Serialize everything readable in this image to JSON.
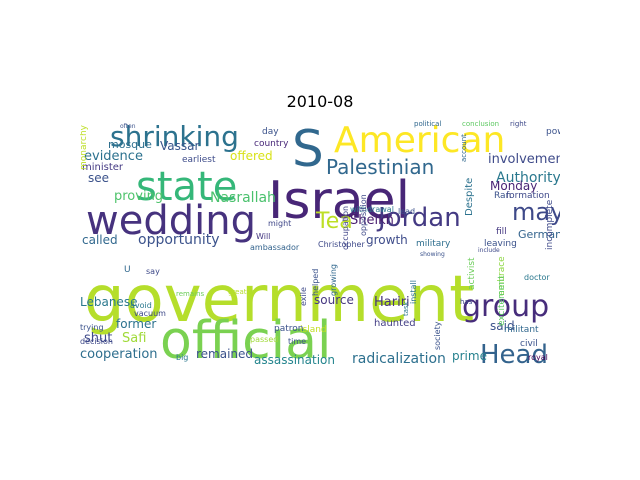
{
  "title": "2010-08",
  "chart_data": {
    "type": "wordcloud",
    "title": "2010-08",
    "words": [
      {
        "text": "government",
        "color": "#b5de2b"
      },
      {
        "text": "official",
        "color": "#7ad151"
      },
      {
        "text": "Israel",
        "color": "#482677"
      },
      {
        "text": "S",
        "color": "#31688e"
      },
      {
        "text": "American",
        "color": "#fde725"
      },
      {
        "text": "wedding",
        "color": "#46327e"
      },
      {
        "text": "state",
        "color": "#35b779"
      },
      {
        "text": "group",
        "color": "#472d7b"
      },
      {
        "text": "Jordan",
        "color": "#443a83"
      },
      {
        "text": "shrinking",
        "color": "#2c728e"
      },
      {
        "text": "Head",
        "color": "#33638d"
      },
      {
        "text": "Palestinian",
        "color": "#31688e"
      },
      {
        "text": "may",
        "color": "#3e4989"
      },
      {
        "text": "Tea",
        "color": "#bddf26"
      },
      {
        "text": "Authority",
        "color": "#2a788e"
      },
      {
        "text": "opportunity",
        "color": "#3b528b"
      },
      {
        "text": "Nasrallah",
        "color": "#4ac16d"
      },
      {
        "text": "involvement",
        "color": "#3e4a89"
      },
      {
        "text": "Monday",
        "color": "#482475"
      },
      {
        "text": "radicalization",
        "color": "#2d708e"
      },
      {
        "text": "assassination",
        "color": "#25858e"
      },
      {
        "text": "cooperation",
        "color": "#2e6e8e"
      },
      {
        "text": "remained",
        "color": "#3b528b"
      },
      {
        "text": "offered",
        "color": "#d8e219"
      },
      {
        "text": "evidence",
        "color": "#2c718e"
      },
      {
        "text": "proving",
        "color": "#4ec36b"
      },
      {
        "text": "called",
        "color": "#31688e"
      },
      {
        "text": "Lebanese",
        "color": "#2a788e"
      },
      {
        "text": "Hariri",
        "color": "#46337e"
      },
      {
        "text": "source",
        "color": "#453781"
      },
      {
        "text": "growth",
        "color": "#3e4c8a"
      },
      {
        "text": "German",
        "color": "#33638d"
      },
      {
        "text": "Sheikh",
        "color": "#481c6e"
      },
      {
        "text": "said",
        "color": "#3b528b"
      },
      {
        "text": "prime",
        "color": "#26818e"
      },
      {
        "text": "former",
        "color": "#2c728e"
      },
      {
        "text": "shut",
        "color": "#3e4989"
      },
      {
        "text": "Safi",
        "color": "#a0da39"
      },
      {
        "text": "see",
        "color": "#3b528b"
      },
      {
        "text": "mosque",
        "color": "#2e6f8e"
      },
      {
        "text": "Vassar",
        "color": "#39568c"
      },
      {
        "text": "minister",
        "color": "#443983"
      },
      {
        "text": "earliest",
        "color": "#3e4c8a"
      },
      {
        "text": "country",
        "color": "#482878"
      },
      {
        "text": "day",
        "color": "#3b528b"
      },
      {
        "text": "might",
        "color": "#3f4788"
      },
      {
        "text": "Will",
        "color": "#453882"
      },
      {
        "text": "Christopher",
        "color": "#3e4989"
      },
      {
        "text": "ambassador",
        "color": "#33638d"
      },
      {
        "text": "withdrawal",
        "color": "#2a788e"
      },
      {
        "text": "occupation",
        "color": "#404588"
      },
      {
        "text": "opposition",
        "color": "#3e4989"
      },
      {
        "text": "lead",
        "color": "#3b528b"
      },
      {
        "text": "Despite",
        "color": "#2c728e"
      },
      {
        "text": "Ran",
        "color": "#3b528b"
      },
      {
        "text": "formation",
        "color": "#3e4989"
      },
      {
        "text": "military",
        "color": "#2e6e8e"
      },
      {
        "text": "leaving",
        "color": "#3b528b"
      },
      {
        "text": "fill",
        "color": "#453882"
      },
      {
        "text": "incomplete",
        "color": "#3e4989"
      },
      {
        "text": "activist",
        "color": "#6ccd5a"
      },
      {
        "text": "embrace",
        "color": "#8fd744"
      },
      {
        "text": "excitement",
        "color": "#5ec962"
      },
      {
        "text": "doctor",
        "color": "#2a788e"
      },
      {
        "text": "militant",
        "color": "#31688e"
      },
      {
        "text": "civil",
        "color": "#3b528b"
      },
      {
        "text": "royal",
        "color": "#440154"
      },
      {
        "text": "haunted",
        "color": "#433e85"
      },
      {
        "text": "island",
        "color": "#c2df23"
      },
      {
        "text": "patron",
        "color": "#3b528b"
      },
      {
        "text": "passed",
        "color": "#a0da39"
      },
      {
        "text": "time",
        "color": "#3b528b"
      },
      {
        "text": "big",
        "color": "#2a788e"
      },
      {
        "text": "exile",
        "color": "#3e4989"
      },
      {
        "text": "helped",
        "color": "#3b528b"
      },
      {
        "text": "growing",
        "color": "#31688e"
      },
      {
        "text": "society",
        "color": "#3b528b"
      },
      {
        "text": "install",
        "color": "#2c728e"
      },
      {
        "text": "decision",
        "color": "#3e4989"
      },
      {
        "text": "avoid",
        "color": "#2a788e"
      },
      {
        "text": "vacuum",
        "color": "#3e4989"
      },
      {
        "text": "trying",
        "color": "#3b528b"
      },
      {
        "text": "say",
        "color": "#3e4989"
      },
      {
        "text": "U",
        "color": "#31688e"
      },
      {
        "text": "monarchy",
        "color": "#bddf26"
      },
      {
        "text": "power",
        "color": "#3b528b"
      },
      {
        "text": "right",
        "color": "#3e4989"
      },
      {
        "text": "political",
        "color": "#31688e"
      },
      {
        "text": "conclusion",
        "color": "#5ec962"
      },
      {
        "text": "remains",
        "color": "#6ccd5a"
      },
      {
        "text": "greater",
        "color": "#b5de2b"
      },
      {
        "text": "showing",
        "color": "#3b528b"
      },
      {
        "text": "include",
        "color": "#3e4989"
      },
      {
        "text": "task",
        "color": "#2a788e"
      },
      {
        "text": "account",
        "color": "#31688e"
      },
      {
        "text": "has",
        "color": "#3e4989"
      },
      {
        "text": "often",
        "color": "#3b528b"
      }
    ]
  }
}
